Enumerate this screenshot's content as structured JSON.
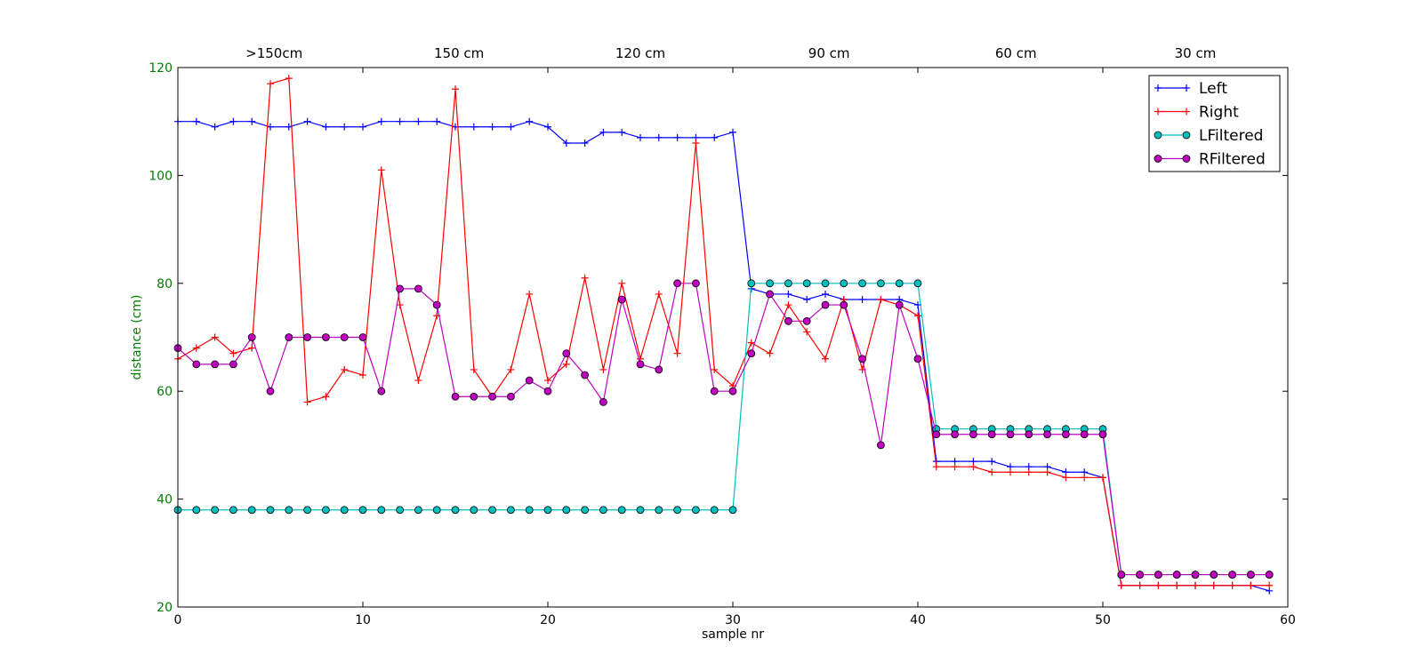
{
  "chart_data": {
    "type": "line",
    "xlabel": "sample nr",
    "ylabel": "distance (cm)",
    "xlim": [
      0,
      60
    ],
    "ylim": [
      20,
      120
    ],
    "xticks": [
      0,
      10,
      20,
      30,
      40,
      50,
      60
    ],
    "yticks": [
      20,
      40,
      60,
      80,
      100,
      120
    ],
    "grid": false,
    "legend_position": "top-right",
    "annotations": [
      {
        "text": ">150cm",
        "x": 5.2
      },
      {
        "text": "150 cm",
        "x": 15.2
      },
      {
        "text": "120 cm",
        "x": 25.0
      },
      {
        "text": "90 cm",
        "x": 35.2
      },
      {
        "text": "60 cm",
        "x": 45.3
      },
      {
        "text": "30 cm",
        "x": 55.0
      }
    ],
    "series": [
      {
        "name": "Left",
        "color": "#0000ff",
        "marker": "plus",
        "values": [
          110,
          110,
          109,
          110,
          110,
          109,
          109,
          110,
          109,
          109,
          109,
          110,
          110,
          110,
          110,
          109,
          109,
          109,
          109,
          110,
          109,
          106,
          106,
          108,
          108,
          107,
          107,
          107,
          107,
          107,
          108,
          79,
          78,
          78,
          77,
          78,
          77,
          77,
          77,
          77,
          76,
          47,
          47,
          47,
          47,
          46,
          46,
          46,
          45,
          45,
          44,
          24,
          24,
          24,
          24,
          24,
          24,
          24,
          24,
          23
        ]
      },
      {
        "name": "Right",
        "color": "#ff0000",
        "marker": "plus",
        "values": [
          66,
          68,
          70,
          67,
          68,
          117,
          118,
          58,
          59,
          64,
          63,
          101,
          76,
          62,
          74,
          116,
          64,
          59,
          64,
          78,
          62,
          65,
          81,
          64,
          80,
          66,
          78,
          67,
          106,
          64,
          61,
          69,
          67,
          76,
          71,
          66,
          77,
          64,
          77,
          76,
          74,
          46,
          46,
          46,
          45,
          45,
          45,
          45,
          44,
          44,
          44,
          24,
          24,
          24,
          24,
          24,
          24,
          24,
          24,
          24
        ]
      },
      {
        "name": "LFiltered",
        "color": "#00bfbf",
        "marker": "circle",
        "values": [
          38,
          38,
          38,
          38,
          38,
          38,
          38,
          38,
          38,
          38,
          38,
          38,
          38,
          38,
          38,
          38,
          38,
          38,
          38,
          38,
          38,
          38,
          38,
          38,
          38,
          38,
          38,
          38,
          38,
          38,
          38,
          80,
          80,
          80,
          80,
          80,
          80,
          80,
          80,
          80,
          80,
          53,
          53,
          53,
          53,
          53,
          53,
          53,
          53,
          53,
          53,
          26,
          26,
          26,
          26,
          26,
          26,
          26,
          26,
          26
        ]
      },
      {
        "name": "RFiltered",
        "color": "#bf00bf",
        "marker": "circle",
        "values": [
          68,
          65,
          65,
          65,
          70,
          60,
          70,
          70,
          70,
          70,
          70,
          60,
          79,
          79,
          76,
          59,
          59,
          59,
          59,
          62,
          60,
          67,
          63,
          58,
          77,
          65,
          64,
          80,
          80,
          60,
          60,
          67,
          78,
          73,
          73,
          76,
          76,
          66,
          50,
          76,
          66,
          52,
          52,
          52,
          52,
          52,
          52,
          52,
          52,
          52,
          52,
          26,
          26,
          26,
          26,
          26,
          26,
          26,
          26,
          26
        ]
      }
    ]
  }
}
